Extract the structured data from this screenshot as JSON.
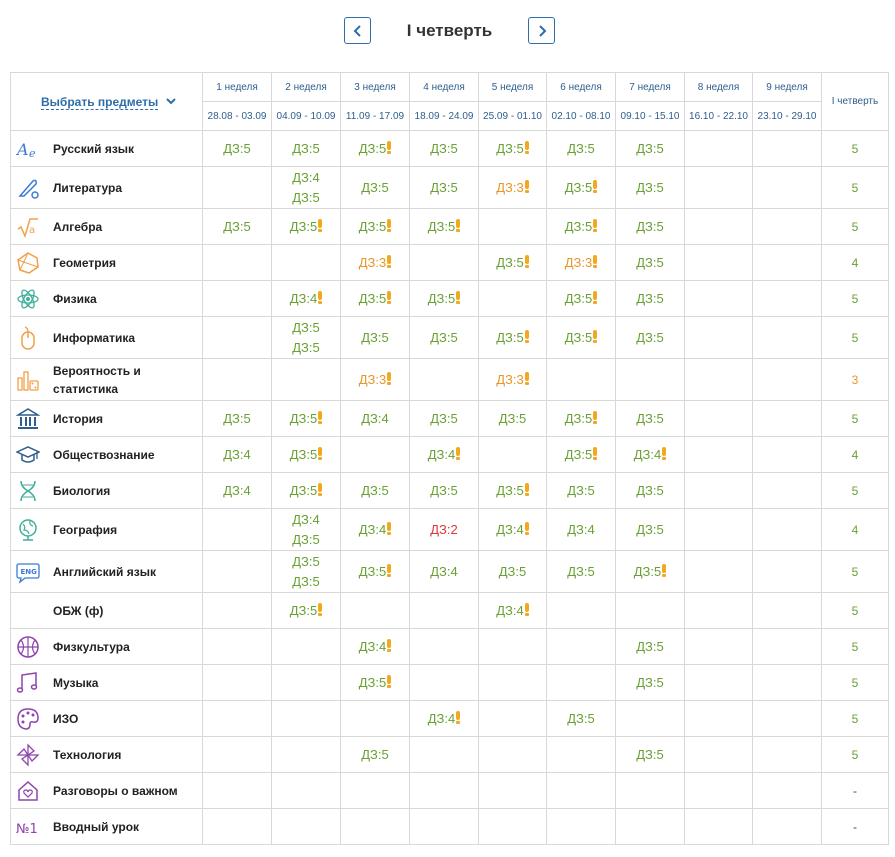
{
  "header": {
    "title": "I четверть"
  },
  "table": {
    "choose_label": "Выбрать предметы",
    "quarter_label": "I четверть",
    "weeks": [
      {
        "label": "1 неделя",
        "dates": "28.08 - 03.09"
      },
      {
        "label": "2 неделя",
        "dates": "04.09 - 10.09"
      },
      {
        "label": "3 неделя",
        "dates": "11.09 - 17.09"
      },
      {
        "label": "4 неделя",
        "dates": "18.09 - 24.09"
      },
      {
        "label": "5 неделя",
        "dates": "25.09 - 01.10"
      },
      {
        "label": "6 неделя",
        "dates": "02.10 - 08.10"
      },
      {
        "label": "7 неделя",
        "dates": "09.10 - 15.10"
      },
      {
        "label": "8 неделя",
        "dates": "16.10 - 22.10"
      },
      {
        "label": "9 неделя",
        "dates": "23.10 - 29.10"
      }
    ],
    "rows": [
      {
        "name": "Русский язык",
        "icon": "letters-icon",
        "color": "#3a7bd5",
        "grade": "5",
        "gc": "g",
        "cells": [
          [
            "ДЗ:5|g"
          ],
          [
            "ДЗ:5|g"
          ],
          [
            "ДЗ:5|g!"
          ],
          [
            "ДЗ:5|g"
          ],
          [
            "ДЗ:5|g!"
          ],
          [
            "ДЗ:5|g"
          ],
          [
            "ДЗ:5|g"
          ],
          [],
          []
        ]
      },
      {
        "name": "Литература",
        "icon": "quill-icon",
        "color": "#3a7bd5",
        "grade": "5",
        "gc": "g",
        "cells": [
          [],
          [
            "ДЗ:4|g",
            "ДЗ:5|g"
          ],
          [
            "ДЗ:5|g"
          ],
          [
            "ДЗ:5|g"
          ],
          [
            "ДЗ:3|o!"
          ],
          [
            "ДЗ:5|g!"
          ],
          [
            "ДЗ:5|g"
          ],
          [],
          []
        ]
      },
      {
        "name": "Алгебра",
        "icon": "sqrt-icon",
        "color": "#f0a04b",
        "grade": "5",
        "gc": "g",
        "cells": [
          [
            "ДЗ:5|g"
          ],
          [
            "ДЗ:5|g!"
          ],
          [
            "ДЗ:5|g!"
          ],
          [
            "ДЗ:5|g!"
          ],
          [],
          [
            "ДЗ:5|g!"
          ],
          [
            "ДЗ:5|g"
          ],
          [],
          []
        ]
      },
      {
        "name": "Геометрия",
        "icon": "polygon-icon",
        "color": "#f0a04b",
        "grade": "4",
        "gc": "g",
        "cells": [
          [],
          [],
          [
            "ДЗ:3|o!"
          ],
          [],
          [
            "ДЗ:5|g!"
          ],
          [
            "ДЗ:3|o!"
          ],
          [
            "ДЗ:5|g"
          ],
          [],
          []
        ]
      },
      {
        "name": "Физика",
        "icon": "atom-icon",
        "color": "#3fae9a",
        "grade": "5",
        "gc": "g",
        "cells": [
          [],
          [
            "ДЗ:4|g!"
          ],
          [
            "ДЗ:5|g!"
          ],
          [
            "ДЗ:5|g!"
          ],
          [],
          [
            "ДЗ:5|g!"
          ],
          [
            "ДЗ:5|g"
          ],
          [],
          []
        ]
      },
      {
        "name": "Информатика",
        "icon": "mouse-icon",
        "color": "#f0a04b",
        "grade": "5",
        "gc": "g",
        "cells": [
          [],
          [
            "ДЗ:5|g",
            "ДЗ:5|g"
          ],
          [
            "ДЗ:5|g"
          ],
          [
            "ДЗ:5|g"
          ],
          [
            "ДЗ:5|g!"
          ],
          [
            "ДЗ:5|g!"
          ],
          [
            "ДЗ:5|g"
          ],
          [],
          []
        ]
      },
      {
        "name": "Вероятность и статистика",
        "icon": "dice-chart-icon",
        "color": "#f0a04b",
        "grade": "3",
        "gc": "o",
        "cells": [
          [],
          [],
          [
            "ДЗ:3|o!"
          ],
          [],
          [
            "ДЗ:3|o!"
          ],
          [],
          [],
          [],
          []
        ]
      },
      {
        "name": "История",
        "icon": "columns-icon",
        "color": "#2f5e8e",
        "grade": "5",
        "gc": "g",
        "cells": [
          [
            "ДЗ:5|g"
          ],
          [
            "ДЗ:5|g!"
          ],
          [
            "ДЗ:4|g"
          ],
          [
            "ДЗ:5|g"
          ],
          [
            "ДЗ:5|g"
          ],
          [
            "ДЗ:5|g!"
          ],
          [
            "ДЗ:5|g"
          ],
          [],
          []
        ]
      },
      {
        "name": "Обществознание",
        "icon": "graduation-cap-icon",
        "color": "#2f5e8e",
        "grade": "4",
        "gc": "g",
        "cells": [
          [
            "ДЗ:4|g"
          ],
          [
            "ДЗ:5|g!"
          ],
          [],
          [
            "ДЗ:4|g!"
          ],
          [],
          [
            "ДЗ:5|g!"
          ],
          [
            "ДЗ:4|g!"
          ],
          [],
          []
        ]
      },
      {
        "name": "Биология",
        "icon": "dna-icon",
        "color": "#3fae9a",
        "grade": "5",
        "gc": "g",
        "cells": [
          [
            "ДЗ:4|g"
          ],
          [
            "ДЗ:5|g!"
          ],
          [
            "ДЗ:5|g"
          ],
          [
            "ДЗ:5|g"
          ],
          [
            "ДЗ:5|g!"
          ],
          [
            "ДЗ:5|g"
          ],
          [
            "ДЗ:5|g"
          ],
          [],
          []
        ]
      },
      {
        "name": "География",
        "icon": "globe-icon",
        "color": "#3fae9a",
        "grade": "4",
        "gc": "g",
        "cells": [
          [],
          [
            "ДЗ:4|g",
            "ДЗ:5|g"
          ],
          [
            "ДЗ:4|g!"
          ],
          [
            "ДЗ:2|r"
          ],
          [
            "ДЗ:4|g!"
          ],
          [
            "ДЗ:4|g"
          ],
          [
            "ДЗ:5|g"
          ],
          [],
          []
        ]
      },
      {
        "name": "Английский язык",
        "icon": "eng-bubble-icon",
        "color": "#3a7bd5",
        "grade": "5",
        "gc": "g",
        "cells": [
          [],
          [
            "ДЗ:5|g",
            "ДЗ:5|g"
          ],
          [
            "ДЗ:5|g!"
          ],
          [
            "ДЗ:4|g"
          ],
          [
            "ДЗ:5|g"
          ],
          [
            "ДЗ:5|g"
          ],
          [
            "ДЗ:5|g!"
          ],
          [],
          []
        ]
      },
      {
        "name": "ОБЖ (ф)",
        "icon": "",
        "color": "#ffffff",
        "grade": "5",
        "gc": "g",
        "cells": [
          [],
          [
            "ДЗ:5|g!"
          ],
          [],
          [],
          [
            "ДЗ:4|g!"
          ],
          [],
          [],
          [],
          []
        ]
      },
      {
        "name": "Физкультура",
        "icon": "ball-icon",
        "color": "#8e44ad",
        "grade": "5",
        "gc": "g",
        "cells": [
          [],
          [],
          [
            "ДЗ:4|g!"
          ],
          [],
          [],
          [],
          [
            "ДЗ:5|g"
          ],
          [],
          []
        ]
      },
      {
        "name": "Музыка",
        "icon": "music-notes-icon",
        "color": "#8e44ad",
        "grade": "5",
        "gc": "g",
        "cells": [
          [],
          [],
          [
            "ДЗ:5|g!"
          ],
          [],
          [],
          [],
          [
            "ДЗ:5|g"
          ],
          [],
          []
        ]
      },
      {
        "name": "ИЗО",
        "icon": "palette-icon",
        "color": "#8e44ad",
        "grade": "5",
        "gc": "g",
        "cells": [
          [],
          [],
          [],
          [
            "ДЗ:4|g!"
          ],
          [],
          [
            "ДЗ:5|g"
          ],
          [],
          [],
          []
        ]
      },
      {
        "name": "Технология",
        "icon": "pinwheel-icon",
        "color": "#8e44ad",
        "grade": "5",
        "gc": "g",
        "cells": [
          [],
          [],
          [
            "ДЗ:5|g"
          ],
          [],
          [],
          [],
          [
            "ДЗ:5|g"
          ],
          [],
          []
        ]
      },
      {
        "name": "Разговоры о важном",
        "icon": "heart-house-icon",
        "color": "#8e44ad",
        "grade": "-",
        "gc": "n",
        "cells": [
          [],
          [],
          [],
          [],
          [],
          [],
          [],
          [],
          []
        ]
      },
      {
        "name": "Вводный урок",
        "icon": "number-one-icon",
        "color": "#8e44ad",
        "grade": "-",
        "gc": "n",
        "cells": [
          [],
          [],
          [],
          [],
          [],
          [],
          [],
          [],
          []
        ]
      }
    ]
  }
}
